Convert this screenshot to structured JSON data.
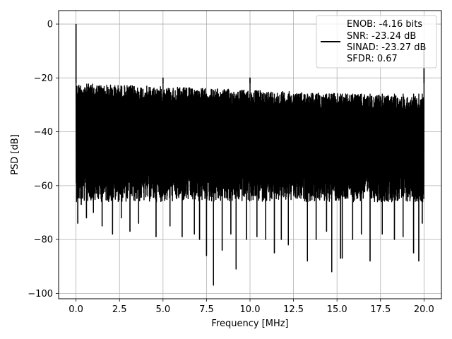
{
  "chart_data": {
    "type": "line",
    "title": "",
    "xlabel": "Frequency [MHz]",
    "ylabel": "PSD [dB]",
    "xlim": [
      -1.0,
      21.0
    ],
    "ylim": [
      -102.0,
      5.0
    ],
    "xticks": [
      0,
      2.5,
      5,
      7.5,
      10,
      12.5,
      15,
      17.5,
      20
    ],
    "xtick_labels": [
      "0.0",
      "2.5",
      "5.0",
      "7.5",
      "10.0",
      "12.5",
      "15.0",
      "17.5",
      "20.0"
    ],
    "yticks": [
      0,
      -20,
      -40,
      -60,
      -80,
      -100
    ],
    "ytick_labels": [
      "0",
      "−20",
      "−40",
      "−60",
      "−80",
      "−100"
    ],
    "grid": true,
    "legend": {
      "placement": "top-right",
      "entries": [
        "ENOB: -4.16 bits",
        "SNR: -23.24 dB",
        "SINAD: -23.27 dB",
        "SFDR: 0.67"
      ]
    },
    "series": [
      {
        "color": "#000000",
        "description": "dense noise floor PSD",
        "x_range": [
          0.0,
          20.0
        ],
        "upper_envelope_start": -22,
        "upper_envelope_end": -27,
        "lower_envelope": -62,
        "peaks": [
          {
            "x": 0.0,
            "y": 0.0
          },
          {
            "x": 5.0,
            "y": -20.0
          },
          {
            "x": 10.0,
            "y": -20.0
          },
          {
            "x": 20.0,
            "y": -8.0
          }
        ],
        "deep_nulls": [
          {
            "x": 0.1,
            "y": -74
          },
          {
            "x": 0.3,
            "y": -67
          },
          {
            "x": 0.6,
            "y": -72
          },
          {
            "x": 1.0,
            "y": -70
          },
          {
            "x": 1.5,
            "y": -75
          },
          {
            "x": 2.1,
            "y": -78
          },
          {
            "x": 2.6,
            "y": -72
          },
          {
            "x": 3.1,
            "y": -77
          },
          {
            "x": 3.6,
            "y": -74
          },
          {
            "x": 4.6,
            "y": -79
          },
          {
            "x": 5.4,
            "y": -75
          },
          {
            "x": 6.1,
            "y": -79
          },
          {
            "x": 6.8,
            "y": -78
          },
          {
            "x": 7.1,
            "y": -80
          },
          {
            "x": 7.5,
            "y": -86
          },
          {
            "x": 7.9,
            "y": -97
          },
          {
            "x": 8.4,
            "y": -84
          },
          {
            "x": 8.9,
            "y": -78
          },
          {
            "x": 9.2,
            "y": -91
          },
          {
            "x": 9.8,
            "y": -80
          },
          {
            "x": 10.4,
            "y": -79
          },
          {
            "x": 10.9,
            "y": -80
          },
          {
            "x": 11.4,
            "y": -85
          },
          {
            "x": 11.8,
            "y": -80
          },
          {
            "x": 12.2,
            "y": -82
          },
          {
            "x": 13.3,
            "y": -88
          },
          {
            "x": 13.8,
            "y": -80
          },
          {
            "x": 14.4,
            "y": -77
          },
          {
            "x": 14.7,
            "y": -92
          },
          {
            "x": 15.2,
            "y": -87
          },
          {
            "x": 15.3,
            "y": -87
          },
          {
            "x": 15.9,
            "y": -80
          },
          {
            "x": 16.4,
            "y": -78
          },
          {
            "x": 16.9,
            "y": -88
          },
          {
            "x": 17.6,
            "y": -78
          },
          {
            "x": 18.3,
            "y": -80
          },
          {
            "x": 18.8,
            "y": -79
          },
          {
            "x": 19.4,
            "y": -85
          },
          {
            "x": 19.7,
            "y": -88
          },
          {
            "x": 19.9,
            "y": -74
          }
        ]
      }
    ]
  }
}
